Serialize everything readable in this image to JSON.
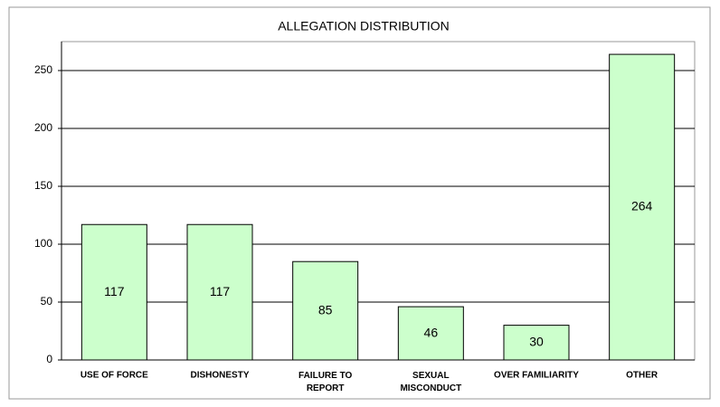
{
  "chart_data": {
    "type": "bar",
    "title": "ALLEGATION DISTRIBUTION",
    "categories": [
      "USE OF FORCE",
      "DISHONESTY",
      "FAILURE TO\nREPORT",
      "SEXUAL\nMISCONDUCT",
      "OVER FAMILIARITY",
      "OTHER"
    ],
    "values": [
      117,
      117,
      85,
      46,
      30,
      264
    ],
    "color": "#ccffcc",
    "ylim": [
      0,
      275
    ],
    "yticks": [
      0,
      50,
      100,
      150,
      200,
      250
    ],
    "grid": true
  }
}
